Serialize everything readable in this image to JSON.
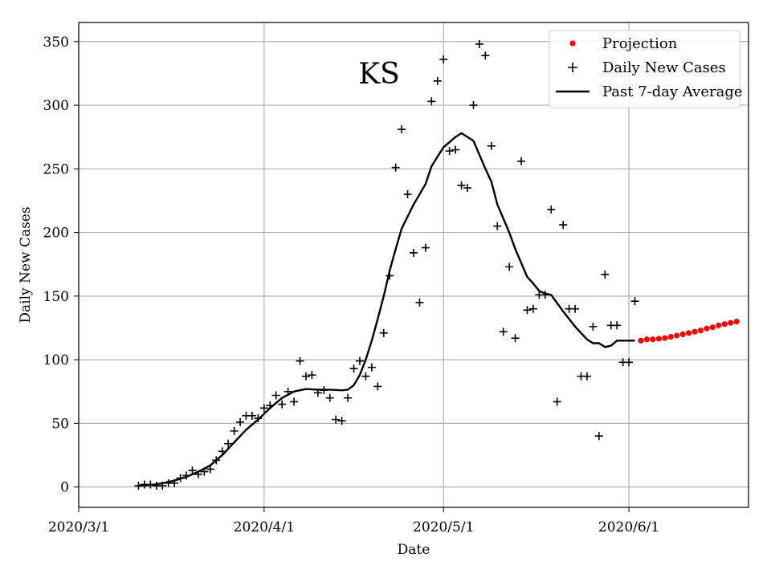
{
  "chart_data": {
    "type": "line",
    "title": "KS",
    "xlabel": "Date",
    "ylabel": "Daily New Cases",
    "x_axis": {
      "start_day": 0,
      "end_day": 112,
      "ticks": [
        {
          "day": 0,
          "label": "2020/3/1"
        },
        {
          "day": 31,
          "label": "2020/4/1"
        },
        {
          "day": 61,
          "label": "2020/5/1"
        },
        {
          "day": 92,
          "label": "2020/6/1"
        }
      ]
    },
    "y_axis": {
      "min": -16,
      "max": 365,
      "ticks": [
        0,
        50,
        100,
        150,
        200,
        250,
        300,
        350
      ]
    },
    "grid": true,
    "legend": {
      "position": "top-right",
      "entries": [
        {
          "label": "Projection",
          "marker": "dot",
          "color": "#ff0000"
        },
        {
          "label": "Daily New Cases",
          "marker": "plus",
          "color": "#000000"
        },
        {
          "label": "Past 7-day Average",
          "marker": "line",
          "color": "#000000"
        }
      ]
    },
    "series": [
      {
        "name": "Daily New Cases",
        "style": "plus",
        "color": "#000000",
        "points": [
          [
            10,
            1
          ],
          [
            11,
            2
          ],
          [
            12,
            2
          ],
          [
            13,
            1
          ],
          [
            14,
            1
          ],
          [
            15,
            3
          ],
          [
            16,
            3
          ],
          [
            17,
            7
          ],
          [
            18,
            9
          ],
          [
            19,
            13
          ],
          [
            20,
            10
          ],
          [
            21,
            12
          ],
          [
            22,
            14
          ],
          [
            23,
            21
          ],
          [
            24,
            28
          ],
          [
            25,
            34
          ],
          [
            26,
            44
          ],
          [
            27,
            51
          ],
          [
            28,
            56
          ],
          [
            29,
            56
          ],
          [
            30,
            54
          ],
          [
            31,
            62
          ],
          [
            32,
            64
          ],
          [
            33,
            72
          ],
          [
            34,
            65
          ],
          [
            35,
            75
          ],
          [
            36,
            67
          ],
          [
            37,
            99
          ],
          [
            38,
            87
          ],
          [
            39,
            88
          ],
          [
            40,
            74
          ],
          [
            41,
            76
          ],
          [
            42,
            70
          ],
          [
            43,
            53
          ],
          [
            44,
            52
          ],
          [
            45,
            70
          ],
          [
            46,
            93
          ],
          [
            47,
            99
          ],
          [
            48,
            87
          ],
          [
            49,
            94
          ],
          [
            50,
            79
          ],
          [
            51,
            121
          ],
          [
            52,
            166
          ],
          [
            53,
            251
          ],
          [
            54,
            281
          ],
          [
            55,
            230
          ],
          [
            56,
            184
          ],
          [
            57,
            145
          ],
          [
            58,
            188
          ],
          [
            59,
            303
          ],
          [
            60,
            319
          ],
          [
            61,
            336
          ],
          [
            62,
            264
          ],
          [
            63,
            265
          ],
          [
            64,
            237
          ],
          [
            65,
            235
          ],
          [
            66,
            300
          ],
          [
            67,
            348
          ],
          [
            68,
            339
          ],
          [
            69,
            268
          ],
          [
            70,
            205
          ],
          [
            71,
            122
          ],
          [
            72,
            173
          ],
          [
            73,
            117
          ],
          [
            74,
            256
          ],
          [
            75,
            139
          ],
          [
            76,
            140
          ],
          [
            77,
            151
          ],
          [
            78,
            151
          ],
          [
            79,
            218
          ],
          [
            80,
            67
          ],
          [
            81,
            206
          ],
          [
            82,
            140
          ],
          [
            83,
            140
          ],
          [
            84,
            87
          ],
          [
            85,
            87
          ],
          [
            86,
            126
          ],
          [
            87,
            40
          ],
          [
            88,
            167
          ],
          [
            89,
            127
          ],
          [
            90,
            127
          ],
          [
            91,
            98
          ],
          [
            92,
            98
          ],
          [
            93,
            146
          ]
        ]
      },
      {
        "name": "Past 7-day Average",
        "style": "line",
        "color": "#000000",
        "points": [
          [
            10,
            1
          ],
          [
            12,
            1.5
          ],
          [
            14,
            3
          ],
          [
            16,
            5
          ],
          [
            18,
            8
          ],
          [
            20,
            12
          ],
          [
            22,
            17
          ],
          [
            24,
            25
          ],
          [
            26,
            35
          ],
          [
            28,
            45
          ],
          [
            30,
            53
          ],
          [
            32,
            62
          ],
          [
            34,
            70
          ],
          [
            36,
            75
          ],
          [
            38,
            77
          ],
          [
            40,
            76.5
          ],
          [
            42,
            76.5
          ],
          [
            44,
            76
          ],
          [
            45,
            76.5
          ],
          [
            46,
            80
          ],
          [
            47,
            88
          ],
          [
            48,
            100
          ],
          [
            49,
            115
          ],
          [
            50,
            132
          ],
          [
            51,
            150
          ],
          [
            52,
            170
          ],
          [
            53,
            187
          ],
          [
            54,
            203
          ],
          [
            56,
            222
          ],
          [
            58,
            238
          ],
          [
            59,
            252
          ],
          [
            61,
            267
          ],
          [
            63,
            275
          ],
          [
            64,
            278
          ],
          [
            66,
            272
          ],
          [
            68,
            250
          ],
          [
            69,
            240
          ],
          [
            70,
            222
          ],
          [
            72,
            200
          ],
          [
            73,
            187
          ],
          [
            75,
            165
          ],
          [
            76,
            160
          ],
          [
            77,
            154
          ],
          [
            78,
            152
          ],
          [
            79,
            151
          ],
          [
            81,
            138
          ],
          [
            83,
            126
          ],
          [
            85,
            116
          ],
          [
            86,
            113
          ],
          [
            87,
            113
          ],
          [
            88,
            110
          ],
          [
            89,
            111
          ],
          [
            90,
            115
          ],
          [
            92,
            115
          ],
          [
            93,
            115
          ]
        ]
      },
      {
        "name": "Projection",
        "style": "dot",
        "color": "#ff0000",
        "points": [
          [
            94,
            115
          ],
          [
            95,
            116
          ],
          [
            96,
            116
          ],
          [
            97,
            116.5
          ],
          [
            98,
            117
          ],
          [
            99,
            118
          ],
          [
            100,
            119
          ],
          [
            101,
            120
          ],
          [
            102,
            121
          ],
          [
            103,
            122
          ],
          [
            104,
            123
          ],
          [
            105,
            124.5
          ],
          [
            106,
            125.5
          ],
          [
            107,
            127
          ],
          [
            108,
            128
          ],
          [
            109,
            129
          ],
          [
            110,
            130
          ]
        ]
      }
    ]
  }
}
